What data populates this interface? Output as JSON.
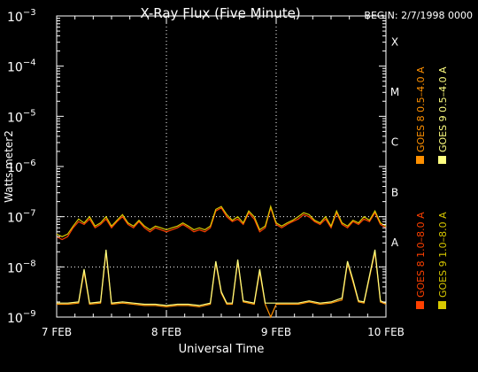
{
  "chart_data": {
    "type": "line",
    "title": "X-Ray Flux (Five Minute)",
    "begin_label": "BEGIN: 2/7/1998 0000",
    "xlabel": "Universal Time",
    "ylabel": "Watts meter2",
    "y_scale": "log",
    "ylim": [
      1e-09,
      0.001
    ],
    "y_ticks": [
      {
        "value": 1e-09,
        "mant": "10",
        "exp": "−9"
      },
      {
        "value": 1e-08,
        "mant": "10",
        "exp": "−8"
      },
      {
        "value": 1e-07,
        "mant": "10",
        "exp": "−7"
      },
      {
        "value": 1e-06,
        "mant": "10",
        "exp": "−6"
      },
      {
        "value": 1e-05,
        "mant": "10",
        "exp": "−5"
      },
      {
        "value": 0.0001,
        "mant": "10",
        "exp": "−4"
      },
      {
        "value": 0.001,
        "mant": "10",
        "exp": "−3"
      }
    ],
    "x_ticks": [
      {
        "day": 0,
        "label": "7 FEB"
      },
      {
        "day": 1,
        "label": "8 FEB"
      },
      {
        "day": 2,
        "label": "9 FEB"
      },
      {
        "day": 3,
        "label": "10 FEB"
      }
    ],
    "xlim": [
      0,
      3
    ],
    "grid": {
      "vertical_days": [
        1,
        2
      ],
      "horizontal_values": [
        1e-08,
        1e-07
      ]
    },
    "flare_classes": [
      {
        "label": "A",
        "value": 1e-08
      },
      {
        "label": "B",
        "value": 1e-07
      },
      {
        "label": "C",
        "value": 1e-06
      },
      {
        "label": "M",
        "value": 1e-05
      },
      {
        "label": "X",
        "value": 0.0001
      }
    ],
    "legend_position": "right",
    "series": [
      {
        "name": "GOES 8 1.0–8.0 A",
        "color": "#ff4000",
        "points": [
          [
            0,
            4e-08
          ],
          [
            0.05,
            3.5e-08
          ],
          [
            0.1,
            4e-08
          ],
          [
            0.15,
            6e-08
          ],
          [
            0.2,
            8e-08
          ],
          [
            0.25,
            7e-08
          ],
          [
            0.3,
            9e-08
          ],
          [
            0.35,
            6e-08
          ],
          [
            0.4,
            7e-08
          ],
          [
            0.45,
            9e-08
          ],
          [
            0.5,
            6e-08
          ],
          [
            0.55,
            8e-08
          ],
          [
            0.6,
            1e-07
          ],
          [
            0.65,
            7e-08
          ],
          [
            0.7,
            6e-08
          ],
          [
            0.75,
            8e-08
          ],
          [
            0.8,
            6e-08
          ],
          [
            0.85,
            5e-08
          ],
          [
            0.9,
            6e-08
          ],
          [
            0.95,
            5.5e-08
          ],
          [
            1.0,
            5e-08
          ],
          [
            1.05,
            5.5e-08
          ],
          [
            1.1,
            6e-08
          ],
          [
            1.15,
            7e-08
          ],
          [
            1.2,
            6e-08
          ],
          [
            1.25,
            5e-08
          ],
          [
            1.3,
            5.5e-08
          ],
          [
            1.35,
            5e-08
          ],
          [
            1.4,
            6e-08
          ],
          [
            1.45,
            1.3e-07
          ],
          [
            1.5,
            1.5e-07
          ],
          [
            1.55,
            1e-07
          ],
          [
            1.6,
            8e-08
          ],
          [
            1.65,
            9e-08
          ],
          [
            1.7,
            7e-08
          ],
          [
            1.75,
            1.2e-07
          ],
          [
            1.8,
            9e-08
          ],
          [
            1.85,
            5e-08
          ],
          [
            1.9,
            6e-08
          ],
          [
            1.95,
            1.5e-07
          ],
          [
            2.0,
            7e-08
          ],
          [
            2.05,
            6e-08
          ],
          [
            2.1,
            7e-08
          ],
          [
            2.15,
            8e-08
          ],
          [
            2.2,
            9e-08
          ],
          [
            2.25,
            1.1e-07
          ],
          [
            2.3,
            1e-07
          ],
          [
            2.35,
            8e-08
          ],
          [
            2.4,
            7e-08
          ],
          [
            2.45,
            9e-08
          ],
          [
            2.5,
            6e-08
          ],
          [
            2.55,
            1.2e-07
          ],
          [
            2.6,
            7e-08
          ],
          [
            2.65,
            6e-08
          ],
          [
            2.7,
            8e-08
          ],
          [
            2.75,
            7e-08
          ],
          [
            2.8,
            9e-08
          ],
          [
            2.85,
            8e-08
          ],
          [
            2.9,
            1.2e-07
          ],
          [
            2.95,
            7e-08
          ],
          [
            3.0,
            6e-08
          ]
        ]
      },
      {
        "name": "GOES 9 1.0–8.0 A",
        "color": "#d8c800",
        "points": [
          [
            0,
            4.5e-08
          ],
          [
            0.05,
            4e-08
          ],
          [
            0.1,
            4.5e-08
          ],
          [
            0.15,
            6.5e-08
          ],
          [
            0.2,
            9e-08
          ],
          [
            0.25,
            7.5e-08
          ],
          [
            0.3,
            1e-07
          ],
          [
            0.35,
            6.5e-08
          ],
          [
            0.4,
            7.5e-08
          ],
          [
            0.45,
            1e-07
          ],
          [
            0.5,
            6.5e-08
          ],
          [
            0.55,
            8.5e-08
          ],
          [
            0.6,
            1.1e-07
          ],
          [
            0.65,
            7.5e-08
          ],
          [
            0.7,
            6.5e-08
          ],
          [
            0.75,
            8.5e-08
          ],
          [
            0.8,
            6.5e-08
          ],
          [
            0.85,
            5.5e-08
          ],
          [
            0.9,
            6.5e-08
          ],
          [
            0.95,
            6e-08
          ],
          [
            1.0,
            5.5e-08
          ],
          [
            1.05,
            6e-08
          ],
          [
            1.1,
            6.5e-08
          ],
          [
            1.15,
            7.5e-08
          ],
          [
            1.2,
            6.5e-08
          ],
          [
            1.25,
            5.5e-08
          ],
          [
            1.3,
            6e-08
          ],
          [
            1.35,
            5.5e-08
          ],
          [
            1.4,
            6.5e-08
          ],
          [
            1.45,
            1.4e-07
          ],
          [
            1.5,
            1.6e-07
          ],
          [
            1.55,
            1.1e-07
          ],
          [
            1.6,
            8.5e-08
          ],
          [
            1.65,
            1e-07
          ],
          [
            1.7,
            7.5e-08
          ],
          [
            1.75,
            1.3e-07
          ],
          [
            1.8,
            1e-07
          ],
          [
            1.85,
            5.5e-08
          ],
          [
            1.9,
            6.5e-08
          ],
          [
            1.95,
            1.6e-07
          ],
          [
            2.0,
            7.5e-08
          ],
          [
            2.05,
            6.5e-08
          ],
          [
            2.1,
            7.5e-08
          ],
          [
            2.15,
            8.5e-08
          ],
          [
            2.2,
            1e-07
          ],
          [
            2.25,
            1.2e-07
          ],
          [
            2.3,
            1.1e-07
          ],
          [
            2.35,
            8.5e-08
          ],
          [
            2.4,
            7.5e-08
          ],
          [
            2.45,
            1e-07
          ],
          [
            2.5,
            6.5e-08
          ],
          [
            2.55,
            1.3e-07
          ],
          [
            2.6,
            7.5e-08
          ],
          [
            2.65,
            6.5e-08
          ],
          [
            2.7,
            8.5e-08
          ],
          [
            2.75,
            7.5e-08
          ],
          [
            2.8,
            1e-07
          ],
          [
            2.85,
            8.5e-08
          ],
          [
            2.9,
            1.3e-07
          ],
          [
            2.95,
            7.5e-08
          ],
          [
            3.0,
            6.5e-08
          ]
        ]
      },
      {
        "name": "GOES 8 0.5–4.0 A",
        "color": "#ff9000",
        "points": [
          [
            0,
            1.8e-09
          ],
          [
            0.1,
            1.8e-09
          ],
          [
            0.2,
            1.9e-09
          ],
          [
            0.25,
            8e-09
          ],
          [
            0.3,
            1.8e-09
          ],
          [
            0.4,
            1.9e-09
          ],
          [
            0.45,
            2e-08
          ],
          [
            0.5,
            1.8e-09
          ],
          [
            0.6,
            1.9e-09
          ],
          [
            0.7,
            1.8e-09
          ],
          [
            0.8,
            1.7e-09
          ],
          [
            0.9,
            1.7e-09
          ],
          [
            1.0,
            1.6e-09
          ],
          [
            1.1,
            1.7e-09
          ],
          [
            1.2,
            1.7e-09
          ],
          [
            1.3,
            1.6e-09
          ],
          [
            1.4,
            1.8e-09
          ],
          [
            1.45,
            1.2e-08
          ],
          [
            1.5,
            3e-09
          ],
          [
            1.55,
            1.8e-09
          ],
          [
            1.6,
            1.8e-09
          ],
          [
            1.65,
            1.3e-08
          ],
          [
            1.7,
            2e-09
          ],
          [
            1.8,
            1.8e-09
          ],
          [
            1.85,
            8e-09
          ],
          [
            1.9,
            1.8e-09
          ],
          [
            1.95,
            1e-09
          ],
          [
            2.0,
            1.8e-09
          ],
          [
            2.1,
            1.8e-09
          ],
          [
            2.2,
            1.8e-09
          ],
          [
            2.3,
            2e-09
          ],
          [
            2.4,
            1.8e-09
          ],
          [
            2.5,
            1.9e-09
          ],
          [
            2.6,
            2.2e-09
          ],
          [
            2.65,
            1.2e-08
          ],
          [
            2.7,
            5e-09
          ],
          [
            2.75,
            2e-09
          ],
          [
            2.8,
            1.9e-09
          ],
          [
            2.9,
            2e-08
          ],
          [
            2.95,
            2e-09
          ],
          [
            3.0,
            1.8e-09
          ]
        ]
      },
      {
        "name": "GOES 9 0.5–4.0 A",
        "color": "#ffff80",
        "points": [
          [
            0,
            1.9e-09
          ],
          [
            0.1,
            1.9e-09
          ],
          [
            0.2,
            2e-09
          ],
          [
            0.25,
            9e-09
          ],
          [
            0.3,
            1.9e-09
          ],
          [
            0.4,
            2e-09
          ],
          [
            0.45,
            2.2e-08
          ],
          [
            0.5,
            1.9e-09
          ],
          [
            0.6,
            2e-09
          ],
          [
            0.7,
            1.9e-09
          ],
          [
            0.8,
            1.8e-09
          ],
          [
            0.9,
            1.8e-09
          ],
          [
            1.0,
            1.7e-09
          ],
          [
            1.1,
            1.8e-09
          ],
          [
            1.2,
            1.8e-09
          ],
          [
            1.3,
            1.7e-09
          ],
          [
            1.4,
            1.9e-09
          ],
          [
            1.45,
            1.3e-08
          ],
          [
            1.5,
            3.2e-09
          ],
          [
            1.55,
            1.9e-09
          ],
          [
            1.6,
            1.9e-09
          ],
          [
            1.65,
            1.4e-08
          ],
          [
            1.7,
            2.1e-09
          ],
          [
            1.8,
            1.9e-09
          ],
          [
            1.85,
            9e-09
          ],
          [
            1.9,
            1.9e-09
          ],
          [
            1.95,
            1.9e-09
          ],
          [
            2.0,
            1.9e-09
          ],
          [
            2.1,
            1.9e-09
          ],
          [
            2.2,
            1.9e-09
          ],
          [
            2.3,
            2.1e-09
          ],
          [
            2.4,
            1.9e-09
          ],
          [
            2.5,
            2e-09
          ],
          [
            2.6,
            2.4e-09
          ],
          [
            2.65,
            1.3e-08
          ],
          [
            2.7,
            5.5e-09
          ],
          [
            2.75,
            2.1e-09
          ],
          [
            2.8,
            2e-09
          ],
          [
            2.9,
            2.2e-08
          ],
          [
            2.95,
            2.1e-09
          ],
          [
            3.0,
            1.9e-09
          ]
        ]
      }
    ]
  }
}
